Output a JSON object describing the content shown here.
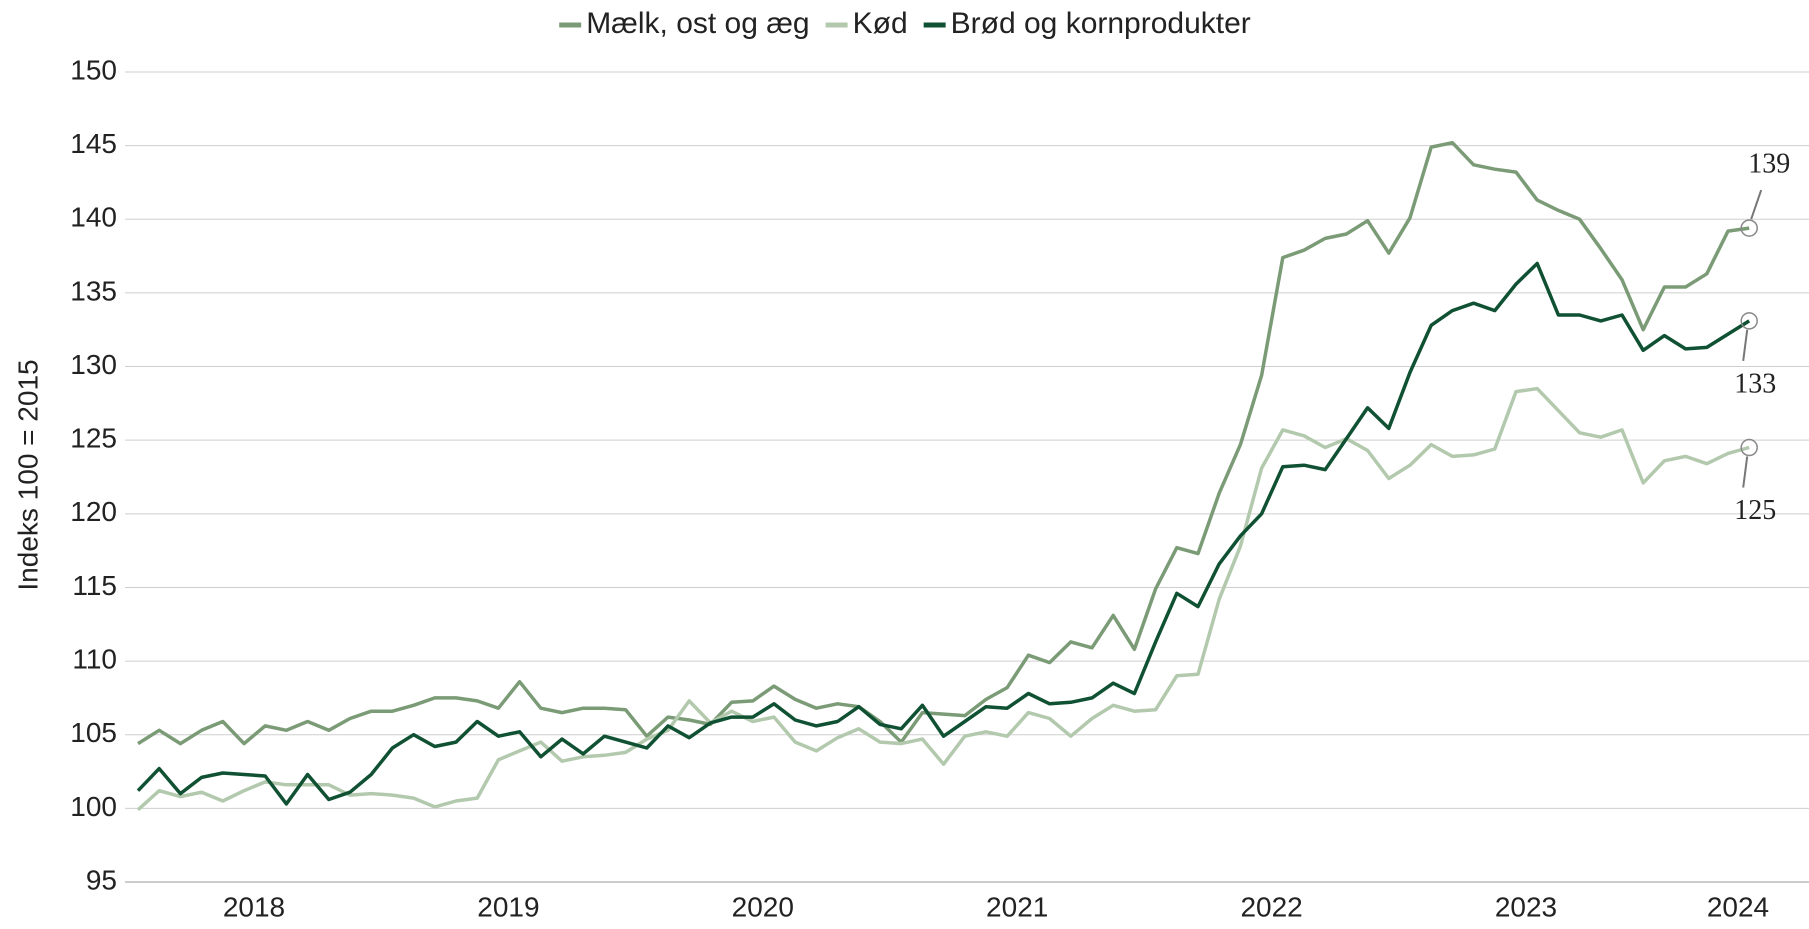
{
  "chart_data": {
    "type": "line",
    "y_label": "Indeks 100 = 2015",
    "categories": [
      null,
      null,
      null,
      null,
      null,
      "2018",
      null,
      null,
      null,
      null,
      null,
      null,
      null,
      null,
      null,
      null,
      null,
      "2019",
      null,
      null,
      null,
      null,
      null,
      null,
      null,
      null,
      null,
      null,
      null,
      "2020",
      null,
      null,
      null,
      null,
      null,
      null,
      null,
      null,
      null,
      null,
      null,
      "2021",
      null,
      null,
      null,
      null,
      null,
      null,
      null,
      null,
      null,
      null,
      null,
      "2022",
      null,
      null,
      null,
      null,
      null,
      null,
      null,
      null,
      null,
      null,
      null,
      "2023",
      null,
      null,
      null,
      null,
      null,
      null,
      null,
      null,
      null,
      "2024",
      null
    ],
    "ylim": [
      95,
      150
    ],
    "yticks": [
      95,
      100,
      105,
      110,
      115,
      120,
      125,
      130,
      135,
      140,
      145,
      150
    ],
    "grid": true,
    "legend": "top",
    "series": [
      {
        "name": "Mælk, ost og æg",
        "color": "#7b9b77",
        "end_label": "139",
        "values": [
          104.4,
          105.3,
          104.4,
          105.3,
          105.9,
          104.4,
          105.6,
          105.3,
          105.9,
          105.3,
          106.1,
          106.6,
          106.6,
          107,
          107.5,
          107.5,
          107.3,
          106.8,
          108.6,
          106.8,
          106.5,
          106.8,
          106.8,
          106.7,
          104.9,
          106.2,
          106,
          105.7,
          107.2,
          107.3,
          108.3,
          107.4,
          106.8,
          107.1,
          106.9,
          105.9,
          104.5,
          106.5,
          106.4,
          106.3,
          107.4,
          108.2,
          110.4,
          109.9,
          111.3,
          110.9,
          113.1,
          110.8,
          114.9,
          117.7,
          117.3,
          121.4,
          124.7,
          129.4,
          137.4,
          137.9,
          138.7,
          139,
          139.9,
          137.7,
          140.1,
          144.9,
          145.2,
          143.7,
          143.4,
          143.2,
          141.3,
          140.6,
          140,
          138,
          135.9,
          132.5,
          135.4,
          135.4,
          136.3,
          139.2,
          139.4
        ]
      },
      {
        "name": "Kød",
        "color": "#b3c9ad",
        "end_label": "125",
        "values": [
          99.9,
          101.2,
          100.8,
          101.1,
          100.5,
          101.2,
          101.8,
          101.6,
          101.6,
          101.6,
          100.9,
          101,
          100.9,
          100.7,
          100.1,
          100.5,
          100.7,
          103.3,
          103.9,
          104.5,
          103.2,
          103.5,
          103.6,
          103.8,
          104.7,
          105.3,
          107.3,
          105.8,
          106.6,
          105.9,
          106.2,
          104.5,
          103.9,
          104.8,
          105.4,
          104.5,
          104.4,
          104.7,
          103,
          104.9,
          105.2,
          104.9,
          106.5,
          106.1,
          104.9,
          106.1,
          107,
          106.6,
          106.7,
          109,
          109.1,
          114.2,
          117.8,
          123.1,
          125.7,
          125.3,
          124.5,
          125.1,
          124.3,
          122.4,
          123.3,
          124.7,
          123.9,
          124,
          124.4,
          128.3,
          128.5,
          127,
          125.5,
          125.2,
          125.7,
          122.1,
          123.6,
          123.9,
          123.4,
          124.1,
          124.5
        ]
      },
      {
        "name": "Brød og kornprodukter",
        "color": "#0f5132",
        "end_label": "133",
        "values": [
          101.2,
          102.7,
          101,
          102.1,
          102.4,
          102.3,
          102.2,
          100.3,
          102.3,
          100.6,
          101.1,
          102.3,
          104.1,
          105,
          104.2,
          104.5,
          105.9,
          104.9,
          105.2,
          103.5,
          104.7,
          103.7,
          104.9,
          104.5,
          104.1,
          105.6,
          104.8,
          105.8,
          106.2,
          106.2,
          107.1,
          106,
          105.6,
          105.9,
          106.9,
          105.7,
          105.4,
          107,
          104.9,
          105.9,
          106.9,
          106.8,
          107.8,
          107.1,
          107.2,
          107.5,
          108.5,
          107.8,
          111.3,
          114.6,
          113.7,
          116.6,
          118.5,
          120,
          123.2,
          123.3,
          123,
          125.1,
          127.2,
          125.8,
          129.6,
          132.8,
          133.8,
          134.3,
          133.8,
          135.6,
          137,
          133.5,
          133.5,
          133.1,
          133.5,
          131.1,
          132.1,
          131.2,
          131.3,
          132.2,
          133.1
        ]
      }
    ]
  }
}
